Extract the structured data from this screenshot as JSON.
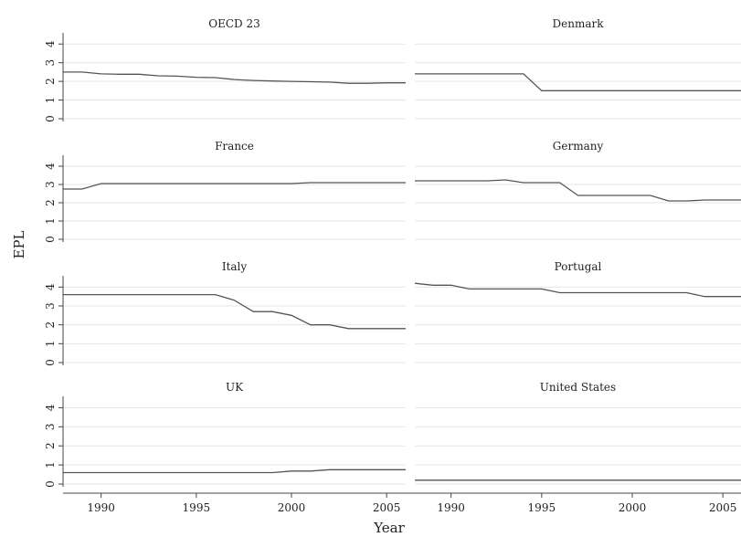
{
  "chart_data": {
    "type": "line",
    "layout": "small-multiples 4x2",
    "xlabel": "Year",
    "ylabel": "EPL",
    "xlim": [
      1988,
      2006
    ],
    "xticks": [
      1990,
      1995,
      2000,
      2005
    ],
    "ylim": [
      0,
      4.5
    ],
    "yticks": [
      0,
      1,
      2,
      3,
      4
    ],
    "grid": true,
    "line_color": "#555555",
    "grid_color": "#e6e6e6",
    "x": [
      1988,
      1989,
      1990,
      1991,
      1992,
      1993,
      1994,
      1995,
      1996,
      1997,
      1998,
      1999,
      2000,
      2001,
      2002,
      2003,
      2004,
      2005,
      2006
    ],
    "series": [
      {
        "name": "OECD 23",
        "values": [
          2.5,
          2.5,
          2.4,
          2.38,
          2.38,
          2.3,
          2.28,
          2.22,
          2.2,
          2.1,
          2.05,
          2.02,
          2.0,
          1.98,
          1.96,
          1.9,
          1.9,
          1.92,
          1.92
        ]
      },
      {
        "name": "Denmark",
        "values": [
          2.4,
          2.4,
          2.4,
          2.4,
          2.4,
          2.4,
          2.4,
          1.5,
          1.5,
          1.5,
          1.5,
          1.5,
          1.5,
          1.5,
          1.5,
          1.5,
          1.5,
          1.5,
          1.5
        ]
      },
      {
        "name": "France",
        "values": [
          2.75,
          2.75,
          3.05,
          3.05,
          3.05,
          3.05,
          3.05,
          3.05,
          3.05,
          3.05,
          3.05,
          3.05,
          3.05,
          3.1,
          3.1,
          3.1,
          3.1,
          3.1,
          3.1
        ]
      },
      {
        "name": "Germany",
        "values": [
          3.2,
          3.2,
          3.2,
          3.2,
          3.2,
          3.25,
          3.1,
          3.1,
          3.1,
          2.4,
          2.4,
          2.4,
          2.4,
          2.4,
          2.1,
          2.1,
          2.15,
          2.15,
          2.15
        ]
      },
      {
        "name": "Italy",
        "values": [
          3.6,
          3.6,
          3.6,
          3.6,
          3.6,
          3.6,
          3.6,
          3.6,
          3.6,
          3.3,
          2.7,
          2.7,
          2.5,
          2.0,
          2.0,
          1.8,
          1.8,
          1.8,
          1.8
        ]
      },
      {
        "name": "Portugal",
        "values": [
          4.2,
          4.1,
          4.1,
          3.9,
          3.9,
          3.9,
          3.9,
          3.9,
          3.7,
          3.7,
          3.7,
          3.7,
          3.7,
          3.7,
          3.7,
          3.7,
          3.5,
          3.5,
          3.5
        ]
      },
      {
        "name": "UK",
        "values": [
          0.6,
          0.6,
          0.6,
          0.6,
          0.6,
          0.6,
          0.6,
          0.6,
          0.6,
          0.6,
          0.6,
          0.6,
          0.68,
          0.68,
          0.75,
          0.75,
          0.75,
          0.75,
          0.75
        ]
      },
      {
        "name": "United States",
        "values": [
          0.2,
          0.2,
          0.2,
          0.2,
          0.2,
          0.2,
          0.2,
          0.2,
          0.2,
          0.2,
          0.2,
          0.2,
          0.2,
          0.2,
          0.2,
          0.2,
          0.2,
          0.2,
          0.2
        ]
      }
    ]
  }
}
